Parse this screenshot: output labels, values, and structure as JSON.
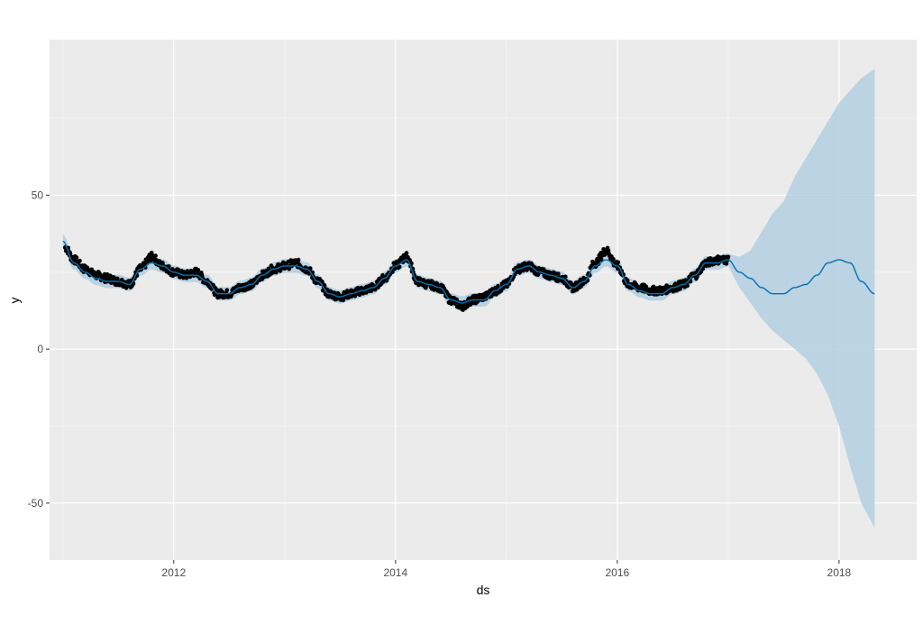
{
  "colors": {
    "panel_background": "#ebebeb",
    "grid_major": "#ffffff",
    "grid_minor": "#f5f5f5",
    "actual_points": "#000000",
    "forecast_line": "#0072b2",
    "uncertainty_band": "#b3cfe0",
    "tick_text": "#4d4d4d",
    "axis_title_text": "#000000"
  },
  "chart_data": {
    "type": "line",
    "xlabel": "ds",
    "ylabel": "y",
    "xlim": [
      2010.88,
      2018.7
    ],
    "ylim": [
      -68.5,
      100.5
    ],
    "grid": true,
    "legend": "none",
    "x_ticks": [
      {
        "value": 2012,
        "label": "2012"
      },
      {
        "value": 2014,
        "label": "2014"
      },
      {
        "value": 2016,
        "label": "2016"
      },
      {
        "value": 2018,
        "label": "2018"
      }
    ],
    "y_ticks": [
      {
        "value": -50,
        "label": "-50"
      },
      {
        "value": 0,
        "label": "0"
      },
      {
        "value": 50,
        "label": "50"
      }
    ],
    "series": [
      {
        "kind": "points",
        "x": [
          2011.02,
          2011.1,
          2011.2,
          2011.3,
          2011.4,
          2011.5,
          2011.6,
          2011.7,
          2011.8,
          2011.9,
          2012.0,
          2012.1,
          2012.2,
          2012.3,
          2012.4,
          2012.5,
          2012.6,
          2012.7,
          2012.8,
          2012.9,
          2013.0,
          2013.1,
          2013.2,
          2013.3,
          2013.4,
          2013.5,
          2013.6,
          2013.7,
          2013.8,
          2013.9,
          2014.0,
          2014.1,
          2014.2,
          2014.3,
          2014.4,
          2014.5,
          2014.6,
          2014.7,
          2014.8,
          2014.9,
          2015.0,
          2015.1,
          2015.2,
          2015.3,
          2015.4,
          2015.5,
          2015.6,
          2015.7,
          2015.8,
          2015.9,
          2016.0,
          2016.1,
          2016.2,
          2016.3,
          2016.4,
          2016.5,
          2016.6,
          2016.7,
          2016.8,
          2016.9,
          2017.0
        ],
        "y": [
          33,
          29,
          26,
          24,
          23,
          22,
          21,
          26,
          30,
          27,
          25,
          24,
          25,
          22,
          18,
          18,
          20,
          21,
          24,
          26,
          27,
          28,
          26,
          22,
          18,
          17,
          18,
          19,
          20,
          23,
          27,
          30,
          22,
          21,
          20,
          16,
          14,
          16,
          17,
          19,
          21,
          26,
          27,
          25,
          24,
          23,
          20,
          22,
          28,
          32,
          27,
          21,
          20,
          19,
          19,
          20,
          21,
          24,
          28,
          29,
          29
        ]
      },
      {
        "kind": "line",
        "x": [
          2011.0,
          2011.1,
          2011.2,
          2011.3,
          2011.4,
          2011.5,
          2011.6,
          2011.7,
          2011.8,
          2011.9,
          2012.0,
          2012.1,
          2012.2,
          2012.3,
          2012.4,
          2012.5,
          2012.6,
          2012.7,
          2012.8,
          2012.9,
          2013.0,
          2013.1,
          2013.2,
          2013.3,
          2013.4,
          2013.5,
          2013.6,
          2013.7,
          2013.8,
          2013.9,
          2014.0,
          2014.1,
          2014.2,
          2014.3,
          2014.4,
          2014.5,
          2014.6,
          2014.7,
          2014.8,
          2014.9,
          2015.0,
          2015.1,
          2015.2,
          2015.3,
          2015.4,
          2015.5,
          2015.6,
          2015.7,
          2015.8,
          2015.9,
          2016.0,
          2016.1,
          2016.2,
          2016.3,
          2016.4,
          2016.5,
          2016.6,
          2016.7,
          2016.8,
          2016.9,
          2017.0,
          2017.1,
          2017.2,
          2017.3,
          2017.4,
          2017.5,
          2017.6,
          2017.7,
          2017.8,
          2017.9,
          2018.0,
          2018.1,
          2018.2,
          2018.32
        ],
        "y": [
          35,
          28,
          25,
          23,
          22,
          22,
          21,
          26,
          28,
          27,
          25,
          24,
          24,
          22,
          18,
          18,
          20,
          21,
          24,
          26,
          27,
          27,
          26,
          22,
          18,
          17,
          18,
          19,
          20,
          23,
          27,
          29,
          22,
          21,
          20,
          16,
          15,
          16,
          16,
          19,
          21,
          26,
          27,
          25,
          24,
          23,
          20,
          22,
          27,
          29,
          27,
          21,
          19,
          18,
          18,
          20,
          21,
          24,
          28,
          28,
          29,
          25,
          23,
          20,
          18,
          18,
          20,
          21,
          24,
          28,
          29,
          28,
          22,
          18
        ]
      },
      {
        "kind": "band",
        "x": [
          2017.0,
          2017.1,
          2017.2,
          2017.3,
          2017.4,
          2017.5,
          2017.6,
          2017.7,
          2017.8,
          2017.9,
          2018.0,
          2018.1,
          2018.2,
          2018.32
        ],
        "lower": [
          27,
          20,
          15,
          10,
          6,
          3,
          0,
          -3,
          -8,
          -15,
          -25,
          -38,
          -50,
          -58
        ],
        "upper": [
          31,
          30,
          32,
          38,
          44,
          48,
          56,
          62,
          68,
          74,
          80,
          84,
          88,
          91
        ]
      }
    ]
  }
}
